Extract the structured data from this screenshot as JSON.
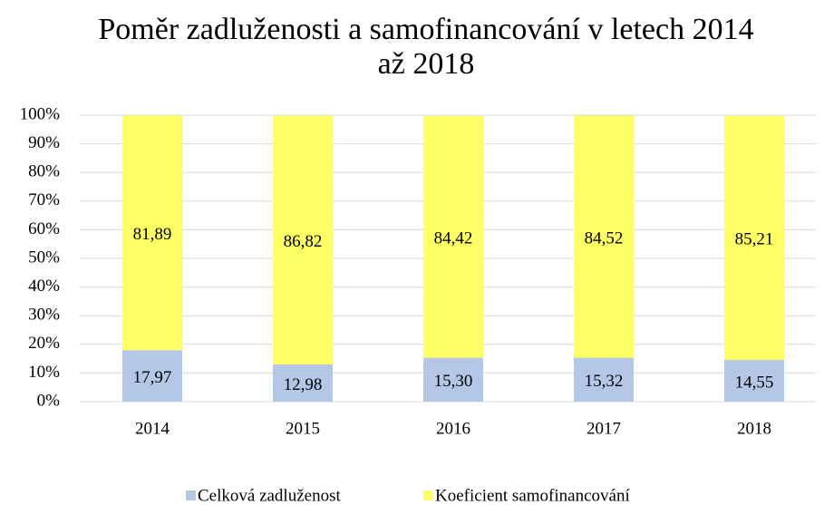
{
  "chart_data": {
    "type": "stacked_bar",
    "title": "Poměr zadluženosti a samofinancování v letech 2014 až 2018",
    "categories": [
      "2014",
      "2015",
      "2016",
      "2017",
      "2018"
    ],
    "series": [
      {
        "name": "Celková zadluženost",
        "color": "#b4c7e7",
        "values": [
          17.97,
          12.98,
          15.3,
          15.32,
          14.55
        ],
        "value_labels": [
          "17,97",
          "12,98",
          "15,30",
          "15,32",
          "14,55"
        ]
      },
      {
        "name": "Koeficient samofinancování",
        "color": "#ffff66",
        "values": [
          81.89,
          86.82,
          84.42,
          84.52,
          85.21
        ],
        "value_labels": [
          "81,89",
          "86,82",
          "84,42",
          "84,52",
          "85,21"
        ]
      }
    ],
    "ylim": [
      0,
      100
    ],
    "yticks": [
      {
        "value": 0,
        "label": "0%"
      },
      {
        "value": 10,
        "label": "10%"
      },
      {
        "value": 20,
        "label": "20%"
      },
      {
        "value": 30,
        "label": "30%"
      },
      {
        "value": 40,
        "label": "40%"
      },
      {
        "value": 50,
        "label": "50%"
      },
      {
        "value": 60,
        "label": "60%"
      },
      {
        "value": 70,
        "label": "70%"
      },
      {
        "value": 80,
        "label": "80%"
      },
      {
        "value": 90,
        "label": "90%"
      },
      {
        "value": 100,
        "label": "100%"
      }
    ],
    "grid": true,
    "legend": "bottom"
  }
}
